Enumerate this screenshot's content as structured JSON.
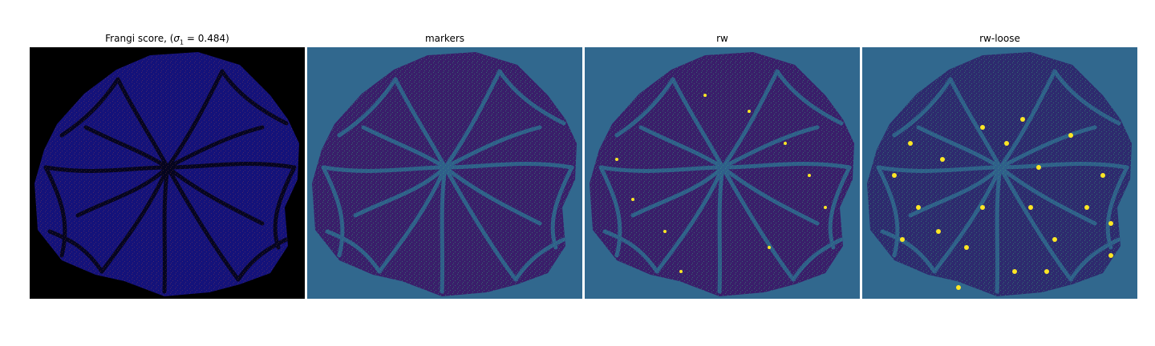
{
  "panels": [
    {
      "id": "frangi",
      "title_prefix": "Frangi score, (",
      "title_sigma": "σ",
      "title_sub": "1",
      "title_suffix": " = 0.484)",
      "background": "#000000",
      "blob_fill": "#14127a",
      "vessel_color": "#050520",
      "accent": "#d0603a"
    },
    {
      "id": "markers",
      "title": "markers",
      "background": "#31688e",
      "blob_fill": "#3a1e6a",
      "vessel_color": "#2f5f8a",
      "speckle": "#35b779"
    },
    {
      "id": "rw",
      "title": "rw",
      "background": "#31688e",
      "blob_fill": "#3a1e6a",
      "vessel_color": "#2f5f8a",
      "speckle": "#35b779",
      "highlight": "#fde725"
    },
    {
      "id": "rw-loose",
      "title": "rw-loose",
      "background": "#31688e",
      "blob_fill": "#2e2a6e",
      "vessel_color": "#2f5f8a",
      "speckle": "#35b779",
      "highlight": "#fde725"
    }
  ]
}
